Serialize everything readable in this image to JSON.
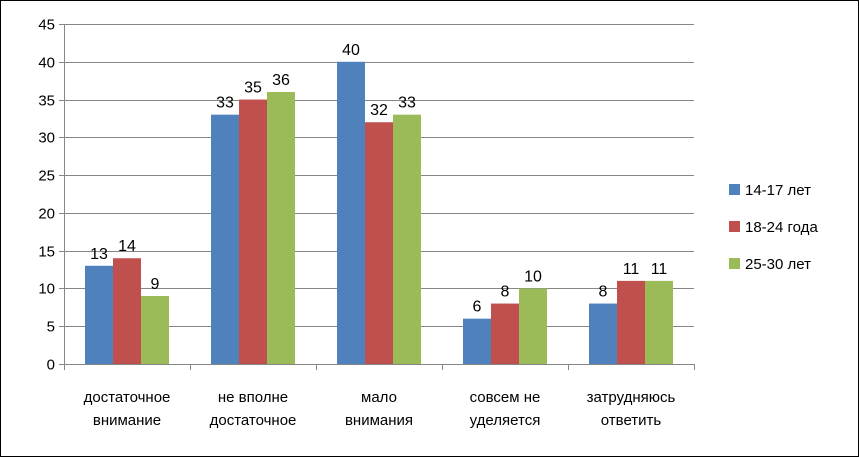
{
  "chart_data": {
    "type": "bar",
    "categories": [
      [
        "достаточное",
        "внимание"
      ],
      [
        "не вполне",
        "достаточное"
      ],
      [
        "мало",
        "внимания"
      ],
      [
        "совсем не",
        "уделяется"
      ],
      [
        "затрудняюсь",
        "ответить"
      ]
    ],
    "series": [
      {
        "name": "14-17 лет",
        "color": "#4f81bd",
        "values": [
          13,
          33,
          40,
          6,
          8
        ]
      },
      {
        "name": "18-24 года",
        "color": "#c0504d",
        "values": [
          14,
          35,
          32,
          8,
          11
        ]
      },
      {
        "name": "25-30 лет",
        "color": "#9bbb59",
        "values": [
          9,
          36,
          33,
          10,
          11
        ]
      }
    ],
    "ylim": [
      0,
      45
    ],
    "yticks": [
      0,
      5,
      10,
      15,
      20,
      25,
      30,
      35,
      40,
      45
    ],
    "title": "",
    "xlabel": "",
    "ylabel": "",
    "grid": true,
    "legend_position": "right",
    "data_labels": true
  }
}
